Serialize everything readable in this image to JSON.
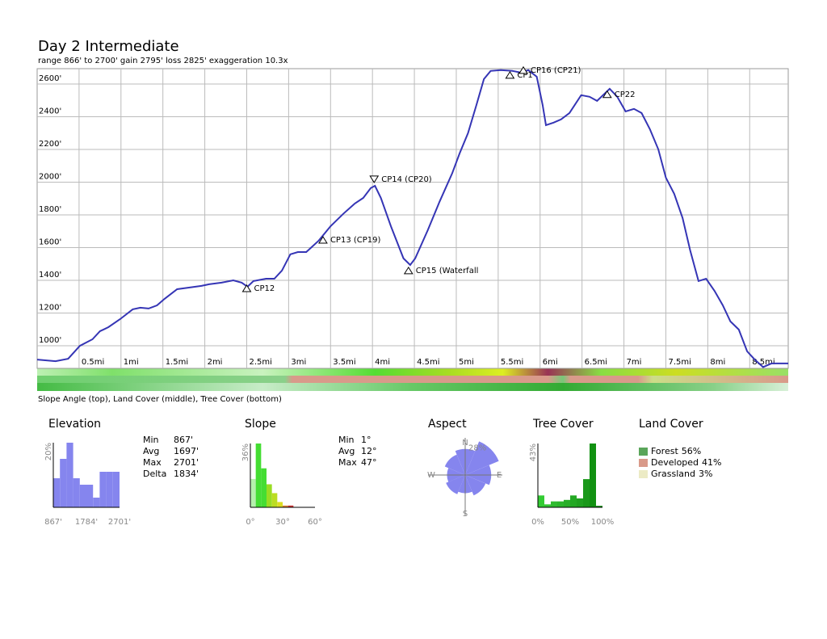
{
  "chart_data": [
    {
      "type": "line",
      "title": "Day 2 Intermediate",
      "subtitle": "range 866' to 2700'  gain 2795'  loss 2825'  exaggeration 10.3x",
      "caption": "Slope Angle (top), Land Cover (middle), Tree Cover (bottom)",
      "x": [
        0.0,
        0.22,
        0.37,
        0.51,
        0.66,
        0.75,
        0.85,
        0.99,
        1.14,
        1.23,
        1.33,
        1.43,
        1.52,
        1.67,
        1.81,
        1.96,
        2.05,
        2.2,
        2.34,
        2.44,
        2.51,
        2.58,
        2.73,
        2.83,
        2.92,
        3.02,
        3.11,
        3.21,
        3.36,
        3.5,
        3.65,
        3.79,
        3.89,
        3.98,
        4.03,
        4.1,
        4.22,
        4.37,
        4.45,
        4.51,
        4.66,
        4.8,
        4.95,
        5.04,
        5.14,
        5.24,
        5.33,
        5.41,
        5.53,
        5.67,
        5.77,
        5.86,
        5.96,
        6.03,
        6.07,
        6.16,
        6.25,
        6.35,
        6.49,
        6.59,
        6.68,
        6.83,
        6.92,
        7.02,
        7.12,
        7.21,
        7.31,
        7.41,
        7.5,
        7.6,
        7.7,
        7.79,
        7.89,
        7.98,
        8.08,
        8.18,
        8.27,
        8.37,
        8.47,
        8.56,
        8.66,
        8.76,
        8.85,
        8.96
      ],
      "series": [
        {
          "color": "#3535b5",
          "values": [
            916,
            906,
            921,
            1000,
            1040,
            1089,
            1114,
            1163,
            1223,
            1233,
            1228,
            1247,
            1287,
            1346,
            1356,
            1366,
            1376,
            1386,
            1400,
            1386,
            1361,
            1396,
            1410,
            1410,
            1460,
            1559,
            1573,
            1573,
            1643,
            1731,
            1806,
            1870,
            1904,
            1964,
            1978,
            1904,
            1731,
            1534,
            1494,
            1534,
            1707,
            1880,
            2053,
            2176,
            2300,
            2472,
            2631,
            2680,
            2685,
            2680,
            2670,
            2685,
            2645,
            2472,
            2349,
            2364,
            2384,
            2423,
            2532,
            2522,
            2497,
            2571,
            2522,
            2433,
            2448,
            2423,
            2324,
            2201,
            2028,
            1929,
            1781,
            1583,
            1396,
            1410,
            1336,
            1247,
            1149,
            1099,
            966,
            916,
            870,
            892,
            892,
            892
          ]
        }
      ],
      "annotations": [
        {
          "label": "CP12",
          "x": 2.5,
          "y": 1351,
          "marker": "up"
        },
        {
          "label": "CP13 (CP19)",
          "x": 3.41,
          "y": 1647,
          "marker": "up"
        },
        {
          "label": "CP14 (CP20)",
          "x": 4.02,
          "y": 2018,
          "marker": "down"
        },
        {
          "label": "CP15 (Waterfall",
          "x": 4.43,
          "y": 1460,
          "marker": "up"
        },
        {
          "label": "CP1",
          "x": 5.64,
          "y": 2655,
          "marker": "up"
        },
        {
          "label": "CP16 (CP21)",
          "x": 5.8,
          "y": 2685,
          "marker": "up"
        },
        {
          "label": "CP22",
          "x": 6.8,
          "y": 2537,
          "marker": "up"
        }
      ],
      "xlim": [
        0,
        8.96
      ],
      "ylim": [
        862,
        2694
      ],
      "xticks": [
        {
          "value": 0.5,
          "label": "0.5mi"
        },
        {
          "value": 1,
          "label": "1mi"
        },
        {
          "value": 1.5,
          "label": "1.5mi"
        },
        {
          "value": 2,
          "label": "2mi"
        },
        {
          "value": 2.5,
          "label": "2.5mi"
        },
        {
          "value": 3,
          "label": "3mi"
        },
        {
          "value": 3.5,
          "label": "3.5mi"
        },
        {
          "value": 4,
          "label": "4mi"
        },
        {
          "value": 4.5,
          "label": "4.5mi"
        },
        {
          "value": 5,
          "label": "5mi"
        },
        {
          "value": 5.5,
          "label": "5.5mi"
        },
        {
          "value": 6,
          "label": "6mi"
        },
        {
          "value": 6.5,
          "label": "6.5mi"
        },
        {
          "value": 7,
          "label": "7mi"
        },
        {
          "value": 7.5,
          "label": "7.5mi"
        },
        {
          "value": 8,
          "label": "8mi"
        },
        {
          "value": 8.5,
          "label": "8.5mi"
        }
      ],
      "yticks": [
        {
          "value": 1000,
          "label": "1000'"
        },
        {
          "value": 1200,
          "label": "1200'"
        },
        {
          "value": 1400,
          "label": "1400'"
        },
        {
          "value": 1600,
          "label": "1600'"
        },
        {
          "value": 1800,
          "label": "1800'"
        },
        {
          "value": 2000,
          "label": "2000'"
        },
        {
          "value": 2200,
          "label": "2200'"
        },
        {
          "value": 2400,
          "label": "2400'"
        },
        {
          "value": 2600,
          "label": "2600'"
        }
      ],
      "grid": true
    },
    {
      "type": "histogram",
      "title": "Elevation",
      "color": "#8585ee",
      "bins": [
        867,
        1050.4,
        1233.8,
        1417.2,
        1600.6,
        1784,
        1967.4,
        2150.8,
        2334.2,
        2517.6,
        2701
      ],
      "values": [
        9,
        15,
        20,
        9,
        7,
        7,
        3,
        11,
        11,
        11
      ],
      "xlim": [
        867,
        2701
      ],
      "xticks": [
        {
          "value": 867,
          "label": "867'"
        },
        {
          "value": 1784,
          "label": "1784'"
        },
        {
          "value": 2701,
          "label": "2701'"
        }
      ],
      "ylim": [
        0,
        20
      ],
      "yticks": [
        {
          "value": 20,
          "label": "20%"
        }
      ],
      "stats": [
        [
          "Min",
          "867'"
        ],
        [
          "Avg",
          "1697'"
        ],
        [
          "Max",
          "2701'"
        ],
        [
          "Delta",
          "1834'"
        ]
      ]
    },
    {
      "type": "histogram",
      "title": "Slope",
      "bins": [
        0,
        5,
        10,
        15,
        20,
        25,
        30,
        35,
        40
      ],
      "values": [
        16,
        36,
        22,
        13,
        8,
        3,
        1,
        1
      ],
      "colors": [
        "#b5f0ad",
        "#44dd33",
        "#44dd33",
        "#99dd22",
        "#bbdd22",
        "#dddd22",
        "#dd8833",
        "#cc3333"
      ],
      "xlim": [
        0,
        60
      ],
      "xticks": [
        {
          "value": 0,
          "label": "0°"
        },
        {
          "value": 30,
          "label": "30°"
        },
        {
          "value": 60,
          "label": "60°"
        }
      ],
      "ylim": [
        0,
        36
      ],
      "yticks": [
        {
          "value": 36,
          "label": "36%"
        }
      ],
      "stats": [
        [
          "Min",
          "1°"
        ],
        [
          "Avg",
          "12°"
        ],
        [
          "Max",
          "47°"
        ]
      ]
    },
    {
      "type": "rose",
      "title": "Aspect",
      "color": "#8585ee",
      "categories": [
        "N",
        null,
        "E",
        null,
        "S",
        null,
        "W",
        null
      ],
      "values": [
        20,
        28,
        20,
        17,
        14,
        16,
        14,
        17
      ],
      "rlim": [
        0,
        28
      ],
      "rticks": [
        {
          "value": 28,
          "label": "28%"
        }
      ]
    },
    {
      "type": "histogram",
      "title": "Tree Cover",
      "bins": [
        0,
        10,
        20,
        30,
        40,
        50,
        60,
        70,
        80,
        90,
        100
      ],
      "values": [
        8,
        2,
        4,
        4,
        5,
        8,
        6,
        19,
        43,
        1
      ],
      "colors": [
        "#33cc33",
        "#33c433",
        "#2fbb2f",
        "#2bb52b",
        "#28ae28",
        "#24a824",
        "#20a020",
        "#1a981a",
        "#119111",
        "#0b880b"
      ],
      "xlim": [
        0,
        100
      ],
      "xticks": [
        {
          "value": 0,
          "label": "0%"
        },
        {
          "value": 50,
          "label": "50%"
        },
        {
          "value": 100,
          "label": "100%"
        }
      ],
      "ylim": [
        0,
        43
      ],
      "yticks": [
        {
          "value": 43,
          "label": "43%"
        }
      ]
    },
    {
      "type": "breakdown",
      "title": "Land Cover",
      "categories": [
        "Forest",
        "Developed",
        "Grassland"
      ],
      "values": [
        56,
        41,
        3
      ],
      "value_labels": [
        "56%",
        "41%",
        "3%"
      ],
      "colors": [
        "#5aa55a",
        "#d99a8a",
        "#ecebc5"
      ]
    }
  ]
}
